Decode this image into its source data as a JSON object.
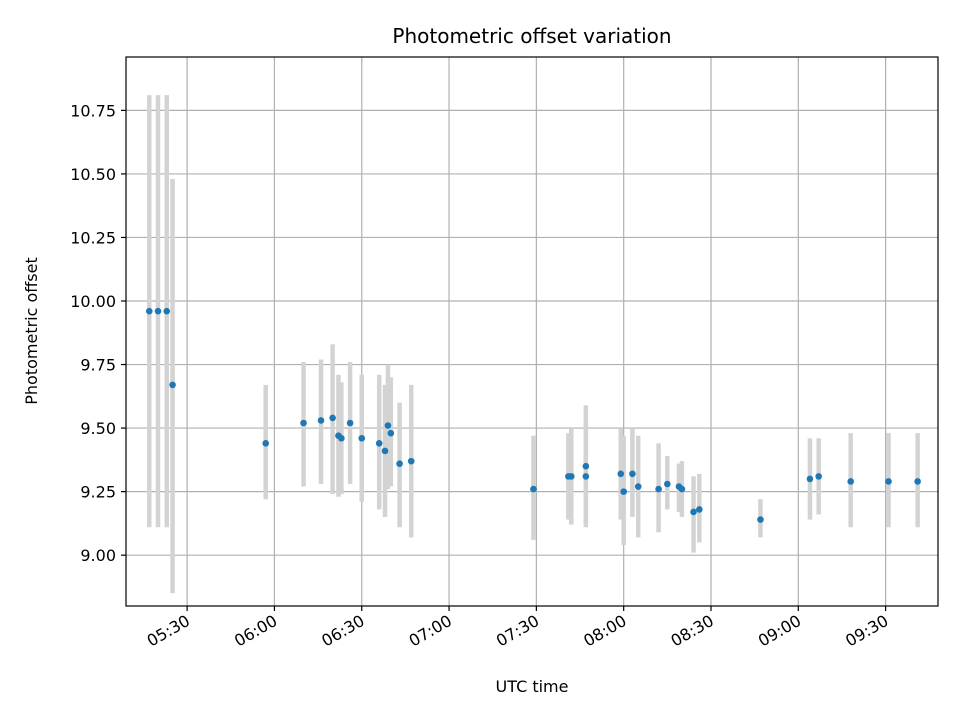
{
  "chart_data": {
    "type": "scatter",
    "title": "Photometric offset variation",
    "xlabel": "UTC time",
    "ylabel": "Photometric offset",
    "grid": true,
    "x_tick_labels": [
      "05:30",
      "06:00",
      "06:30",
      "07:00",
      "07:30",
      "08:00",
      "08:30",
      "09:00",
      "09:30"
    ],
    "y_tick_labels": [
      "9.00",
      "9.25",
      "9.50",
      "9.75",
      "10.00",
      "10.25",
      "10.50",
      "10.75"
    ],
    "xlim": [
      "05:09",
      "09:48"
    ],
    "ylim": [
      8.8,
      10.96
    ],
    "colors": {
      "marker": "#1f77b4",
      "errorbar": "#d3d3d3",
      "grid": "#b0b0b0"
    },
    "series": [
      {
        "points": [
          {
            "x": "05:17",
            "y": 9.96,
            "yerr_low": 9.11,
            "yerr_high": 10.81
          },
          {
            "x": "05:20",
            "y": 9.96,
            "yerr_low": 9.11,
            "yerr_high": 10.81
          },
          {
            "x": "05:23",
            "y": 9.96,
            "yerr_low": 9.11,
            "yerr_high": 10.81
          },
          {
            "x": "05:25",
            "y": 9.67,
            "yerr_low": 8.85,
            "yerr_high": 10.48
          },
          {
            "x": "05:57",
            "y": 9.44,
            "yerr_low": 9.22,
            "yerr_high": 9.67
          },
          {
            "x": "06:10",
            "y": 9.52,
            "yerr_low": 9.27,
            "yerr_high": 9.76
          },
          {
            "x": "06:16",
            "y": 9.53,
            "yerr_low": 9.28,
            "yerr_high": 9.77
          },
          {
            "x": "06:20",
            "y": 9.54,
            "yerr_low": 9.24,
            "yerr_high": 9.83
          },
          {
            "x": "06:22",
            "y": 9.47,
            "yerr_low": 9.23,
            "yerr_high": 9.71
          },
          {
            "x": "06:23",
            "y": 9.46,
            "yerr_low": 9.24,
            "yerr_high": 9.68
          },
          {
            "x": "06:26",
            "y": 9.52,
            "yerr_low": 9.28,
            "yerr_high": 9.76
          },
          {
            "x": "06:30",
            "y": 9.46,
            "yerr_low": 9.21,
            "yerr_high": 9.71
          },
          {
            "x": "06:36",
            "y": 9.44,
            "yerr_low": 9.18,
            "yerr_high": 9.71
          },
          {
            "x": "06:38",
            "y": 9.41,
            "yerr_low": 9.15,
            "yerr_high": 9.67
          },
          {
            "x": "06:39",
            "y": 9.51,
            "yerr_low": 9.26,
            "yerr_high": 9.75
          },
          {
            "x": "06:40",
            "y": 9.48,
            "yerr_low": 9.27,
            "yerr_high": 9.7
          },
          {
            "x": "06:43",
            "y": 9.36,
            "yerr_low": 9.11,
            "yerr_high": 9.6
          },
          {
            "x": "06:47",
            "y": 9.37,
            "yerr_low": 9.07,
            "yerr_high": 9.67
          },
          {
            "x": "07:29",
            "y": 9.26,
            "yerr_low": 9.06,
            "yerr_high": 9.47
          },
          {
            "x": "07:41",
            "y": 9.31,
            "yerr_low": 9.14,
            "yerr_high": 9.48
          },
          {
            "x": "07:42",
            "y": 9.31,
            "yerr_low": 9.12,
            "yerr_high": 9.5
          },
          {
            "x": "07:47",
            "y": 9.31,
            "yerr_low": 9.11,
            "yerr_high": 9.52
          },
          {
            "x": "07:47",
            "y": 9.35,
            "yerr_low": 9.12,
            "yerr_high": 9.59
          },
          {
            "x": "07:59",
            "y": 9.32,
            "yerr_low": 9.14,
            "yerr_high": 9.5
          },
          {
            "x": "08:00",
            "y": 9.25,
            "yerr_low": 9.04,
            "yerr_high": 9.47
          },
          {
            "x": "08:03",
            "y": 9.32,
            "yerr_low": 9.15,
            "yerr_high": 9.5
          },
          {
            "x": "08:05",
            "y": 9.27,
            "yerr_low": 9.07,
            "yerr_high": 9.47
          },
          {
            "x": "08:12",
            "y": 9.26,
            "yerr_low": 9.09,
            "yerr_high": 9.44
          },
          {
            "x": "08:15",
            "y": 9.28,
            "yerr_low": 9.18,
            "yerr_high": 9.39
          },
          {
            "x": "08:19",
            "y": 9.27,
            "yerr_low": 9.17,
            "yerr_high": 9.36
          },
          {
            "x": "08:20",
            "y": 9.26,
            "yerr_low": 9.15,
            "yerr_high": 9.37
          },
          {
            "x": "08:24",
            "y": 9.17,
            "yerr_low": 9.01,
            "yerr_high": 9.31
          },
          {
            "x": "08:26",
            "y": 9.18,
            "yerr_low": 9.05,
            "yerr_high": 9.32
          },
          {
            "x": "08:47",
            "y": 9.14,
            "yerr_low": 9.07,
            "yerr_high": 9.22
          },
          {
            "x": "09:04",
            "y": 9.3,
            "yerr_low": 9.14,
            "yerr_high": 9.46
          },
          {
            "x": "09:07",
            "y": 9.31,
            "yerr_low": 9.16,
            "yerr_high": 9.46
          },
          {
            "x": "09:18",
            "y": 9.29,
            "yerr_low": 9.11,
            "yerr_high": 9.48
          },
          {
            "x": "09:31",
            "y": 9.29,
            "yerr_low": 9.11,
            "yerr_high": 9.48
          },
          {
            "x": "09:41",
            "y": 9.29,
            "yerr_low": 9.11,
            "yerr_high": 9.48
          }
        ]
      }
    ]
  }
}
